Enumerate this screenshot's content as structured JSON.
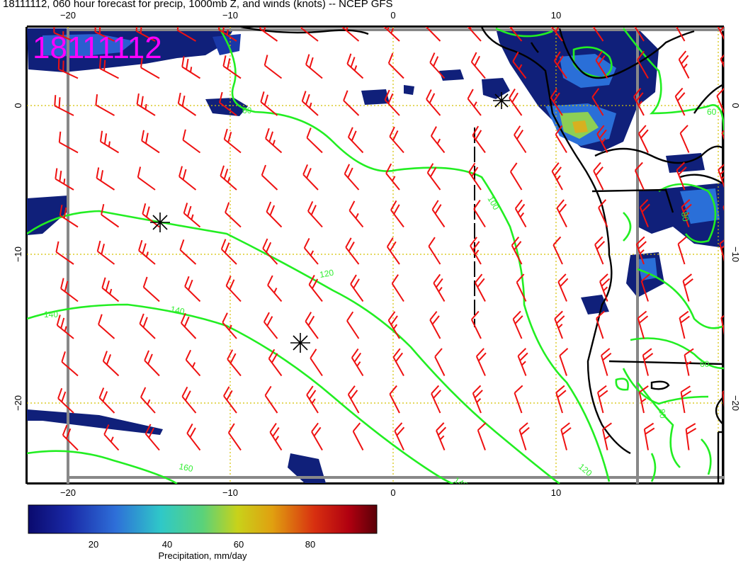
{
  "title": "18111112, 060 hour forecast for precip, 1000mb Z, and winds (knots) -- NCEP GFS",
  "stamp": "18111112",
  "x_ticks": [
    "−20",
    "−10",
    "0",
    "10"
  ],
  "y_ticks": [
    "0",
    "−10",
    "−20"
  ],
  "contour_labels": [
    "60",
    "100",
    "120",
    "140",
    "140",
    "160",
    "140",
    "120",
    "60",
    "80",
    "60",
    "80"
  ],
  "colorbar": {
    "ticks": [
      "20",
      "40",
      "60",
      "80"
    ],
    "label": "Precipitation, mm/day"
  },
  "colors": {
    "wind_barb": "#ee1111",
    "contour": "#22ee22",
    "grid": "#d4c000",
    "coast": "#000000",
    "stamp": "#ff00ff"
  }
}
